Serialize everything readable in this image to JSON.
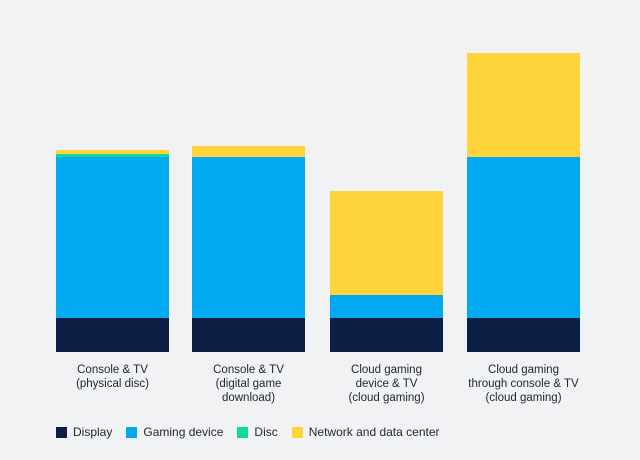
{
  "chart_data": {
    "type": "bar",
    "stacked": true,
    "categories": [
      "Console & TV\n(physical disc)",
      "Console & TV\n(digital game\ndownload)",
      "Cloud gaming\ndevice & TV\n(cloud gaming)",
      "Cloud gaming\nthrough console & TV\n(cloud gaming)"
    ],
    "series": [
      {
        "name": "Display",
        "color": "#0b1f45",
        "values": [
          34,
          34,
          34,
          34
        ]
      },
      {
        "name": "Gaming device",
        "color": "#00a9f0",
        "values": [
          161,
          161,
          23,
          161
        ]
      },
      {
        "name": "Disc",
        "color": "#14d99d",
        "values": [
          3,
          0,
          0,
          0
        ]
      },
      {
        "name": "Network and data center",
        "color": "#ffd43b",
        "values": [
          4,
          11,
          104,
          104
        ]
      }
    ],
    "ylim": [
      0,
      300
    ],
    "grid": false,
    "legend_position": "bottom-left"
  }
}
